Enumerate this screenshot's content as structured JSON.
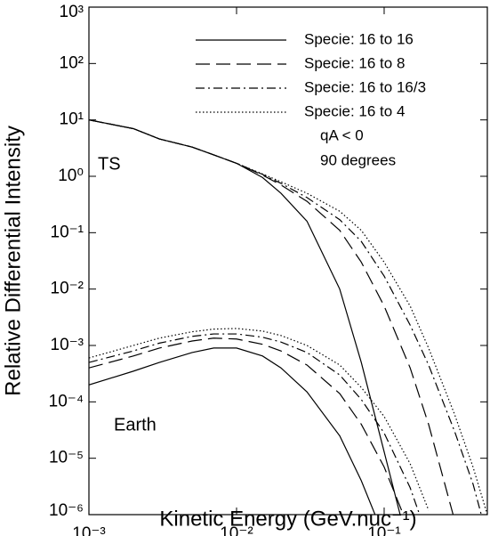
{
  "chart_data": {
    "type": "line",
    "x_label": "Kinetic Energy (GeV.nuc⁻¹)",
    "y_label": "Relative Differential Intensity",
    "log_x": true,
    "log_y": true,
    "xlim": [
      0.001,
      0.5
    ],
    "ylim": [
      1e-06,
      1000
    ],
    "xticks": [
      {
        "value": 0.001,
        "label": "10⁻³"
      },
      {
        "value": 0.01,
        "label": "10⁻²"
      },
      {
        "value": 0.1,
        "label": "10⁻¹"
      }
    ],
    "yticks": [
      {
        "value": 1000,
        "label": "10³"
      },
      {
        "value": 100,
        "label": "10²"
      },
      {
        "value": 10,
        "label": "10¹"
      },
      {
        "value": 1,
        "label": "10⁰"
      },
      {
        "value": 0.1,
        "label": "10⁻¹"
      },
      {
        "value": 0.01,
        "label": "10⁻²"
      },
      {
        "value": 0.001,
        "label": "10⁻³"
      },
      {
        "value": 0.0001,
        "label": "10⁻⁴"
      },
      {
        "value": 1e-05,
        "label": "10⁻⁵"
      },
      {
        "value": 1e-06,
        "label": "10⁻⁶"
      }
    ],
    "annotations": [
      "qA < 0",
      "90 degrees"
    ],
    "group_labels": [
      "TS",
      "Earth"
    ],
    "x": [
      0.001,
      0.002,
      0.003,
      0.005,
      0.007,
      0.01,
      0.015,
      0.02,
      0.03,
      0.05,
      0.07,
      0.1,
      0.15,
      0.2,
      0.3,
      0.4,
      0.5
    ],
    "series": [
      {
        "name": "Specie: 16 to 16",
        "color": "#000000",
        "dash": "none",
        "values": [
          10,
          7,
          4.6,
          3.3,
          2.4,
          1.7,
          0.95,
          0.5,
          0.16,
          0.01,
          0.0005,
          1.3e-05,
          2e-07,
          null,
          null,
          null,
          null
        ],
        "earth_values": [
          0.0002,
          0.00035,
          0.0005,
          0.00075,
          0.0009,
          0.0009,
          0.00065,
          0.0004,
          0.00015,
          2.5e-05,
          4e-06,
          4e-07,
          null,
          null,
          null,
          null,
          null
        ]
      },
      {
        "name": "Specie: 16 to 8",
        "color": "#000000",
        "dash": "16,7",
        "values": [
          10,
          7,
          4.6,
          3.3,
          2.4,
          1.7,
          1.05,
          0.7,
          0.36,
          0.11,
          0.03,
          0.005,
          0.0004,
          4e-05,
          8e-07,
          null,
          null
        ],
        "earth_values": [
          0.0004,
          0.00065,
          0.0009,
          0.0012,
          0.00135,
          0.0013,
          0.00105,
          0.0008,
          0.00045,
          0.00014,
          4e-05,
          7e-06,
          5e-07,
          null,
          null,
          null,
          null
        ]
      },
      {
        "name": "Specie: 16 to 16/3",
        "color": "#000000",
        "dash": "10,4,2,4",
        "values": [
          10,
          7,
          4.6,
          3.3,
          2.4,
          1.7,
          1.08,
          0.75,
          0.42,
          0.17,
          0.07,
          0.017,
          0.0023,
          0.00045,
          3e-05,
          3.5e-06,
          4e-07
        ],
        "earth_values": [
          0.0005,
          0.0008,
          0.0011,
          0.00145,
          0.0016,
          0.0016,
          0.0014,
          0.00115,
          0.00075,
          0.0003,
          0.00011,
          2.8e-05,
          3e-06,
          3.5e-07,
          null,
          null,
          null
        ]
      },
      {
        "name": "Specie: 16 to 4",
        "color": "#000000",
        "dash": "1.5,2.5",
        "values": [
          10,
          7,
          4.6,
          3.3,
          2.4,
          1.7,
          1.1,
          0.8,
          0.5,
          0.24,
          0.11,
          0.03,
          0.005,
          0.0009,
          6e-05,
          7e-06,
          1e-06
        ],
        "earth_values": [
          0.0006,
          0.001,
          0.00135,
          0.00175,
          0.00195,
          0.002,
          0.0018,
          0.0015,
          0.001,
          0.00045,
          0.00018,
          5.5e-05,
          8e-06,
          1.2e-06,
          null,
          null,
          null
        ]
      }
    ]
  }
}
